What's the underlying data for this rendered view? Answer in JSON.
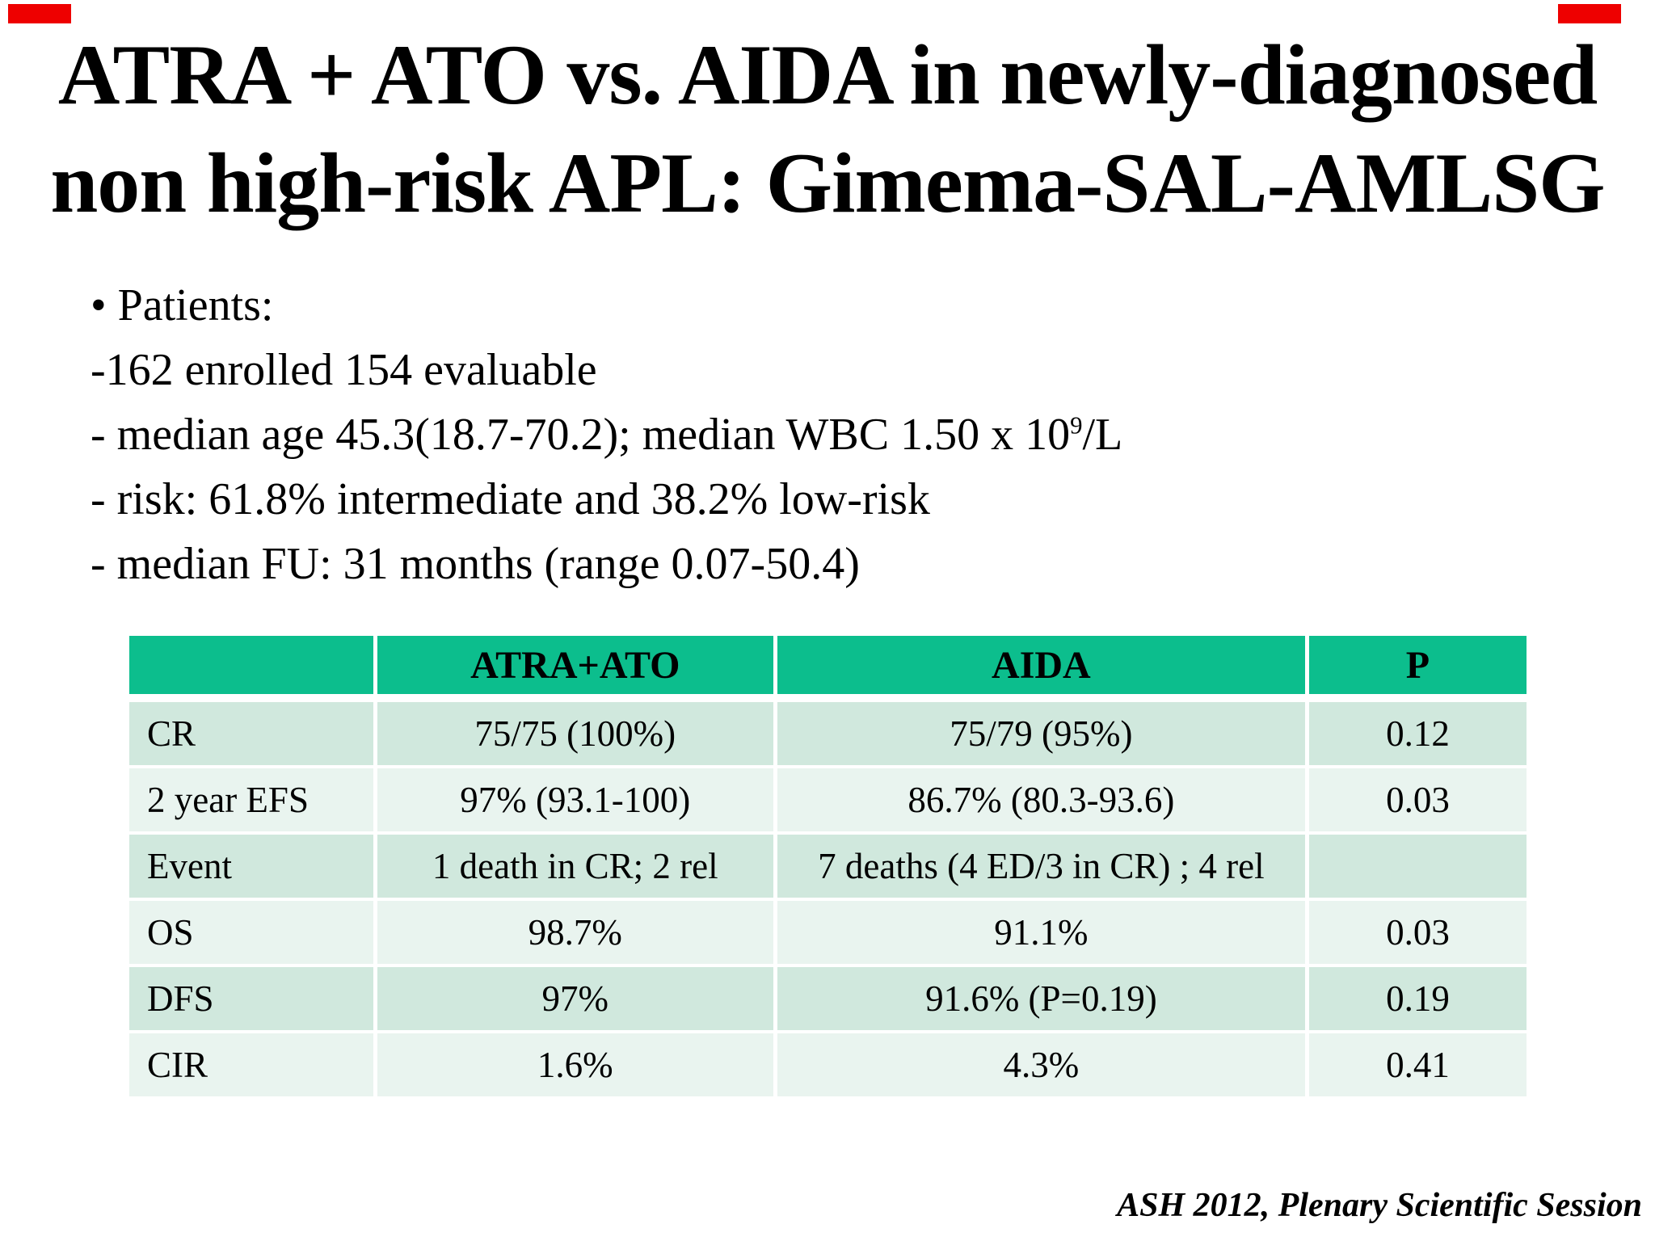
{
  "slide": {
    "title_line1": "ATRA + ATO vs. AIDA in newly-diagnosed",
    "title_line2": "non high-risk APL: Gimema-SAL-AMLSG",
    "footer": "ASH 2012, Plenary Scientific Session"
  },
  "bullets": {
    "items": [
      {
        "segments": [
          {
            "text": "• Patients:"
          }
        ]
      },
      {
        "segments": [
          {
            "text": "-162 enrolled 154 evaluable"
          }
        ]
      },
      {
        "segments": [
          {
            "text": "- median age 45.3(18.7-70.2); median WBC 1.50 x 10"
          },
          {
            "text": "9",
            "superscript": true
          },
          {
            "text": "/L"
          }
        ]
      },
      {
        "segments": [
          {
            "text": "- risk: 61.8% intermediate and 38.2% low-risk"
          }
        ]
      },
      {
        "segments": [
          {
            "text": "- median FU: 31 months (range 0.07-50.4)"
          }
        ]
      }
    ]
  },
  "table": {
    "columns": [
      "",
      "ATRA+ATO",
      "AIDA",
      "P"
    ],
    "rows": [
      {
        "cells": [
          "CR",
          "75/75 (100%)",
          "75/79 (95%)",
          "0.12"
        ]
      },
      {
        "cells": [
          "2 year EFS",
          "97%  (93.1-100)",
          "86.7% (80.3-93.6)",
          "0.03"
        ]
      },
      {
        "cells": [
          "Event",
          "1 death in CR; 2 rel",
          "7 deaths (4 ED/3 in CR) ; 4 rel",
          ""
        ]
      },
      {
        "cells": [
          "OS",
          "98.7%",
          "91.1%",
          "0.03"
        ]
      },
      {
        "cells": [
          "DFS",
          "97%",
          "91.6% (P=0.19)",
          "0.19"
        ]
      },
      {
        "cells": [
          "CIR",
          "1.6%",
          "4.3%",
          "0.41"
        ]
      }
    ]
  },
  "colors": {
    "table_header_bg": "#0CBE8D",
    "table_row_odd_bg": "#D0E8DD",
    "table_row_even_bg": "#E9F4EF",
    "corner_mark_red": "#EE0000",
    "text": "#000000",
    "background": "#FFFFFF"
  }
}
